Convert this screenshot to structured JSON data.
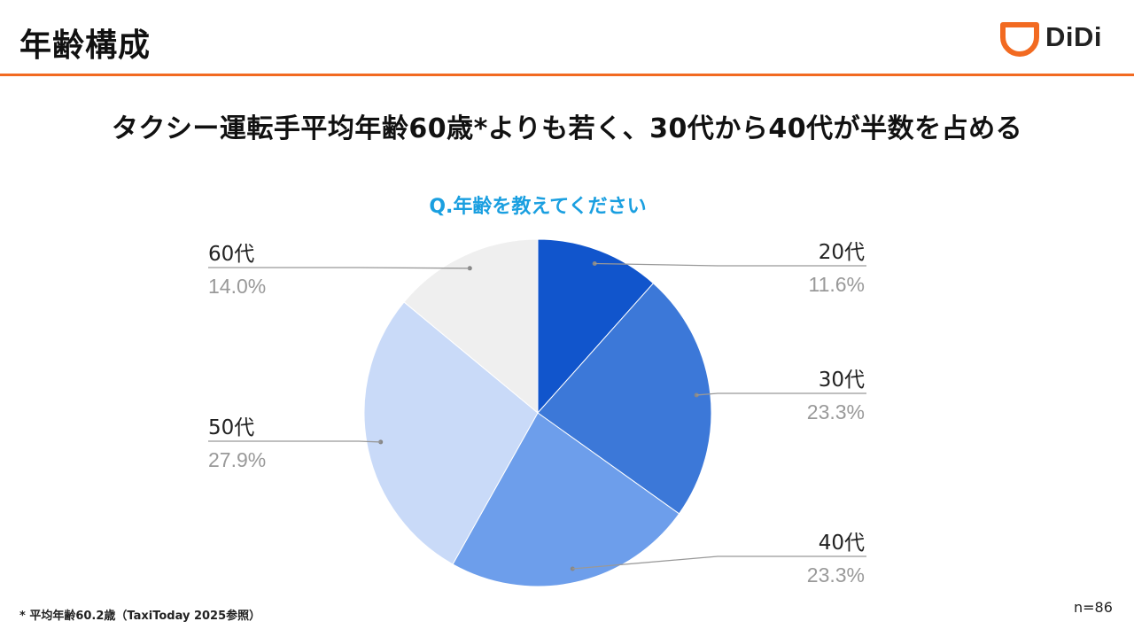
{
  "header": {
    "title": "年齢構成",
    "logo_text": "DiDi",
    "accent_color": "#f26a21"
  },
  "headline": "タクシー運転手平均年齢60歳*よりも若く、30代から40代が半数を占める",
  "chart_data": {
    "type": "pie",
    "title": "Q.年齢を教えてください",
    "title_color": "#1a9fe0",
    "categories": [
      "20代",
      "30代",
      "40代",
      "50代",
      "60代"
    ],
    "values": [
      11.6,
      23.3,
      23.3,
      27.9,
      14.0
    ],
    "value_labels": [
      "11.6%",
      "23.3%",
      "23.3%",
      "27.9%",
      "14.0%"
    ],
    "colors": [
      "#1155cc",
      "#3c78d8",
      "#6d9eeb",
      "#c9daf8",
      "#efefef"
    ],
    "start": "top, clockwise"
  },
  "footnote": "* 平均年齢60.2歳（TaxiToday 2025参照）",
  "sample_size": "n=86"
}
